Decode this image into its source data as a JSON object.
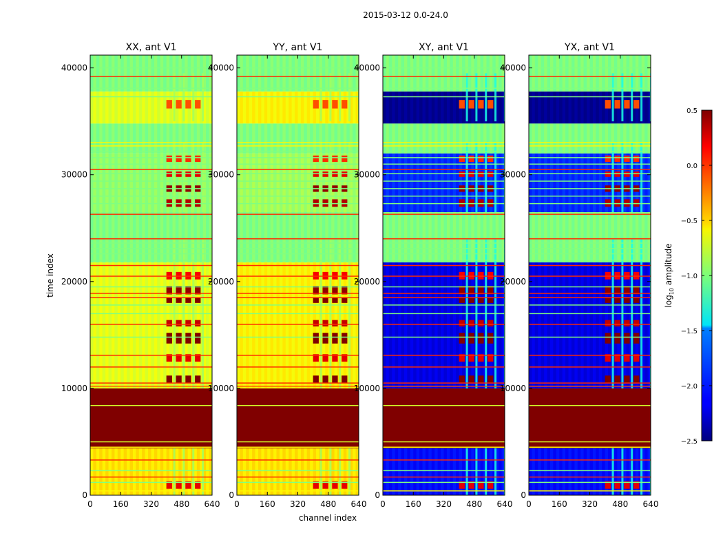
{
  "suptitle": "2015-03-12 0.0-24.0",
  "colors": {
    "band_saturated": "#7f0000",
    "axes_edge": "#000000",
    "background": "#ffffff"
  },
  "chart_data": {
    "type": "heatmap",
    "title": "2015-03-12 0.0-24.0",
    "xlabel": "channel index",
    "ylabel": "time index",
    "xlim": [
      0,
      640
    ],
    "ylim": [
      0,
      41200
    ],
    "x_ticks": [
      0,
      160,
      320,
      480,
      640
    ],
    "y_ticks": [
      0,
      10000,
      20000,
      30000,
      40000
    ],
    "panels": [
      {
        "title": "XX, ant V1",
        "style": "parallel",
        "regions": [
          {
            "t0": 0,
            "t1": 4400,
            "level": -0.55
          },
          {
            "t0": 4400,
            "t1": 10000,
            "level": 0.5
          },
          {
            "t0": 10000,
            "t1": 21800,
            "level": -0.7
          },
          {
            "t0": 21800,
            "t1": 24000,
            "level": -1.0
          },
          {
            "t0": 24000,
            "t1": 26500,
            "level": -1.0
          },
          {
            "t0": 26500,
            "t1": 32000,
            "level": -0.95
          },
          {
            "t0": 32000,
            "t1": 34800,
            "level": -1.0
          },
          {
            "t0": 34800,
            "t1": 37800,
            "level": -0.72
          },
          {
            "t0": 37800,
            "t1": 41200,
            "level": -1.0
          }
        ]
      },
      {
        "title": "YY, ant V1",
        "style": "parallel",
        "regions": [
          {
            "t0": 0,
            "t1": 4400,
            "level": -0.55
          },
          {
            "t0": 4400,
            "t1": 10000,
            "level": 0.5
          },
          {
            "t0": 10000,
            "t1": 21800,
            "level": -0.6
          },
          {
            "t0": 21800,
            "t1": 24000,
            "level": -1.0
          },
          {
            "t0": 24000,
            "t1": 26500,
            "level": -1.0
          },
          {
            "t0": 26500,
            "t1": 32000,
            "level": -0.9
          },
          {
            "t0": 32000,
            "t1": 34800,
            "level": -1.0
          },
          {
            "t0": 34800,
            "t1": 37800,
            "level": -0.6
          },
          {
            "t0": 37800,
            "t1": 41200,
            "level": -1.0
          }
        ]
      },
      {
        "title": "XY, ant V1",
        "style": "cross",
        "regions": [
          {
            "t0": 0,
            "t1": 4400,
            "level": -2.1
          },
          {
            "t0": 4400,
            "t1": 10000,
            "level": 0.5
          },
          {
            "t0": 10000,
            "t1": 21800,
            "level": -2.2
          },
          {
            "t0": 21800,
            "t1": 24000,
            "level": -1.0
          },
          {
            "t0": 24000,
            "t1": 26500,
            "level": -1.0
          },
          {
            "t0": 26500,
            "t1": 32000,
            "level": -2.0
          },
          {
            "t0": 32000,
            "t1": 34800,
            "level": -1.0
          },
          {
            "t0": 34800,
            "t1": 37800,
            "level": -2.45
          },
          {
            "t0": 37800,
            "t1": 41200,
            "level": -1.0
          }
        ]
      },
      {
        "title": "YX, ant V1",
        "style": "cross",
        "regions": [
          {
            "t0": 0,
            "t1": 4400,
            "level": -2.1
          },
          {
            "t0": 4400,
            "t1": 10000,
            "level": 0.5
          },
          {
            "t0": 10000,
            "t1": 21800,
            "level": -2.2
          },
          {
            "t0": 21800,
            "t1": 24000,
            "level": -1.0
          },
          {
            "t0": 24000,
            "t1": 26500,
            "level": -1.0
          },
          {
            "t0": 26500,
            "t1": 32000,
            "level": -2.0
          },
          {
            "t0": 32000,
            "t1": 34800,
            "level": -1.0
          },
          {
            "t0": 34800,
            "t1": 37800,
            "level": -2.45
          },
          {
            "t0": 37800,
            "t1": 41200,
            "level": -1.0
          }
        ]
      }
    ],
    "hot_channel_range": [
      400,
      600
    ],
    "hot_channel_columns": [
      {
        "c0": 400,
        "c1": 430
      },
      {
        "c0": 450,
        "c1": 480
      },
      {
        "c0": 500,
        "c1": 530
      },
      {
        "c0": 550,
        "c1": 580
      }
    ],
    "hot_time_bands": [
      {
        "t0": 600,
        "t1": 1300,
        "level": 0.2
      },
      {
        "t0": 10500,
        "t1": 11200,
        "level": 0.5
      },
      {
        "t0": 12500,
        "t1": 13200,
        "level": 0.2
      },
      {
        "t0": 14200,
        "t1": 15200,
        "level": 0.5
      },
      {
        "t0": 15800,
        "t1": 16400,
        "level": 0.3
      },
      {
        "t0": 18000,
        "t1": 18500,
        "level": 0.5
      },
      {
        "t0": 18800,
        "t1": 19600,
        "level": 0.45
      },
      {
        "t0": 20200,
        "t1": 20900,
        "level": 0.15
      },
      {
        "t0": 27000,
        "t1": 27700,
        "level": 0.35
      },
      {
        "t0": 28400,
        "t1": 29000,
        "level": 0.45
      },
      {
        "t0": 29800,
        "t1": 30300,
        "level": 0.2
      },
      {
        "t0": 31200,
        "t1": 31800,
        "level": 0.0
      },
      {
        "t0": 36200,
        "t1": 37000,
        "level": -0.1
      }
    ],
    "flag_lines": [
      {
        "t": 400,
        "level": -0.6
      },
      {
        "t": 1200,
        "level": -1.0
      },
      {
        "t": 1700,
        "level": 0.0
      },
      {
        "t": 2300,
        "level": -1.0
      },
      {
        "t": 3300,
        "level": 0.0
      },
      {
        "t": 4500,
        "level": -0.6
      },
      {
        "t": 5000,
        "level": -0.75
      },
      {
        "t": 8400,
        "level": -0.75
      },
      {
        "t": 10200,
        "level": -0.1
      },
      {
        "t": 10500,
        "level": 0.0
      },
      {
        "t": 12000,
        "level": 0.0
      },
      {
        "t": 13100,
        "level": 0.0
      },
      {
        "t": 14800,
        "level": -1.0
      },
      {
        "t": 16000,
        "level": 0.0
      },
      {
        "t": 17000,
        "level": -1.0
      },
      {
        "t": 17800,
        "level": -1.0
      },
      {
        "t": 18500,
        "level": 0.0
      },
      {
        "t": 18900,
        "level": 0.0
      },
      {
        "t": 19500,
        "level": -1.0
      },
      {
        "t": 20500,
        "level": 0.0
      },
      {
        "t": 21500,
        "level": 0.0
      },
      {
        "t": 22000,
        "level": -1.0
      },
      {
        "t": 22600,
        "level": -1.0
      },
      {
        "t": 23100,
        "level": -1.0
      },
      {
        "t": 23600,
        "level": -1.0
      },
      {
        "t": 24000,
        "level": 0.0
      },
      {
        "t": 26300,
        "level": 0.0
      },
      {
        "t": 27300,
        "level": -1.0
      },
      {
        "t": 28000,
        "level": -1.0
      },
      {
        "t": 28700,
        "level": -1.0
      },
      {
        "t": 29400,
        "level": -1.0
      },
      {
        "t": 30100,
        "level": -1.0
      },
      {
        "t": 30500,
        "level": 0.0
      },
      {
        "t": 31000,
        "level": -1.0
      },
      {
        "t": 31600,
        "level": -1.0
      },
      {
        "t": 32200,
        "level": -1.0
      },
      {
        "t": 32700,
        "level": -0.6
      },
      {
        "t": 33000,
        "level": -0.6
      },
      {
        "t": 37300,
        "level": -1.0
      },
      {
        "t": 38100,
        "level": -1.0
      },
      {
        "t": 39200,
        "level": 0.0
      },
      {
        "t": 40000,
        "level": -1.0
      }
    ],
    "colorbar": {
      "label": "log$_{10}$ amplitude",
      "label_base": "log",
      "label_sub": "10",
      "label_rest": " amplitude",
      "vmin": -2.5,
      "vmax": 0.5,
      "colormap": "jet",
      "ticks": [
        0.5,
        0.0,
        -0.5,
        -1.0,
        -1.5,
        -2.0,
        -2.5
      ],
      "tick_labels": [
        "0.5",
        "0.0",
        "−0.5",
        "−1.0",
        "−1.5",
        "−2.0",
        "−2.5"
      ]
    }
  }
}
